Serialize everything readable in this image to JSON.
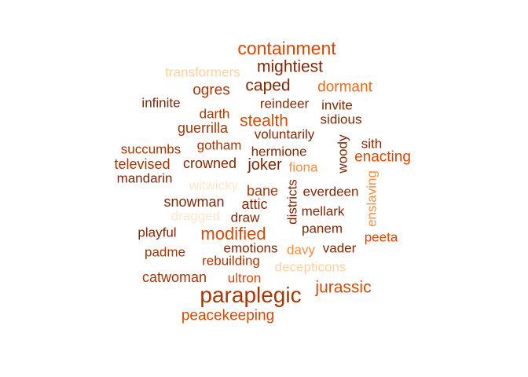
{
  "words": [
    {
      "text": "containment",
      "color": "#d94801"
    },
    {
      "text": "mightiest",
      "color": "#7f2704"
    },
    {
      "text": "transformers",
      "color": "#fdd0a2"
    },
    {
      "text": "dormant",
      "color": "#f16913"
    },
    {
      "text": "caped",
      "color": "#7f2704"
    },
    {
      "text": "ogres",
      "color": "#a63603"
    },
    {
      "text": "infinite",
      "color": "#7f2704"
    },
    {
      "text": "reindeer",
      "color": "#7f2704"
    },
    {
      "text": "invite",
      "color": "#7f2704"
    },
    {
      "text": "darth",
      "color": "#a63603"
    },
    {
      "text": "stealth",
      "color": "#d94801"
    },
    {
      "text": "sidious",
      "color": "#7f2704"
    },
    {
      "text": "guerrilla",
      "color": "#a63603"
    },
    {
      "text": "voluntarily",
      "color": "#7f2704"
    },
    {
      "text": "woody",
      "color": "#7f2704"
    },
    {
      "text": "sith",
      "color": "#7f2704"
    },
    {
      "text": "succumbs",
      "color": "#a63603"
    },
    {
      "text": "gotham",
      "color": "#a63603"
    },
    {
      "text": "hermione",
      "color": "#7f2704"
    },
    {
      "text": "enacting",
      "color": "#d94801"
    },
    {
      "text": "televised",
      "color": "#a63603"
    },
    {
      "text": "crowned",
      "color": "#7f2704"
    },
    {
      "text": "joker",
      "color": "#7f2704"
    },
    {
      "text": "fiona",
      "color": "#fd8d3c"
    },
    {
      "text": "mandarin",
      "color": "#7f2704"
    },
    {
      "text": "witwicky",
      "color": "#fee6ce"
    },
    {
      "text": "bane",
      "color": "#a63603"
    },
    {
      "text": "districts",
      "color": "#7f2704"
    },
    {
      "text": "everdeen",
      "color": "#7f2704"
    },
    {
      "text": "enslaving",
      "color": "#fd8d3c"
    },
    {
      "text": "snowman",
      "color": "#7f2704"
    },
    {
      "text": "attic",
      "color": "#7f2704"
    },
    {
      "text": "dragged",
      "color": "#fee6ce"
    },
    {
      "text": "draw",
      "color": "#7f2704"
    },
    {
      "text": "mellark",
      "color": "#7f2704"
    },
    {
      "text": "playful",
      "color": "#7f2704"
    },
    {
      "text": "modified",
      "color": "#d94801"
    },
    {
      "text": "panem",
      "color": "#7f2704"
    },
    {
      "text": "peeta",
      "color": "#d94801"
    },
    {
      "text": "emotions",
      "color": "#7f2704"
    },
    {
      "text": "padme",
      "color": "#a63603"
    },
    {
      "text": "davy",
      "color": "#fd8d3c"
    },
    {
      "text": "vader",
      "color": "#7f2704"
    },
    {
      "text": "rebuilding",
      "color": "#a63603"
    },
    {
      "text": "decepticons",
      "color": "#fdd0a2"
    },
    {
      "text": "catwoman",
      "color": "#a63603"
    },
    {
      "text": "ultron",
      "color": "#d94801"
    },
    {
      "text": "paraplegic",
      "color": "#a63603"
    },
    {
      "text": "jurassic",
      "color": "#d94801"
    },
    {
      "text": "peacekeeping",
      "color": "#d94801"
    }
  ]
}
